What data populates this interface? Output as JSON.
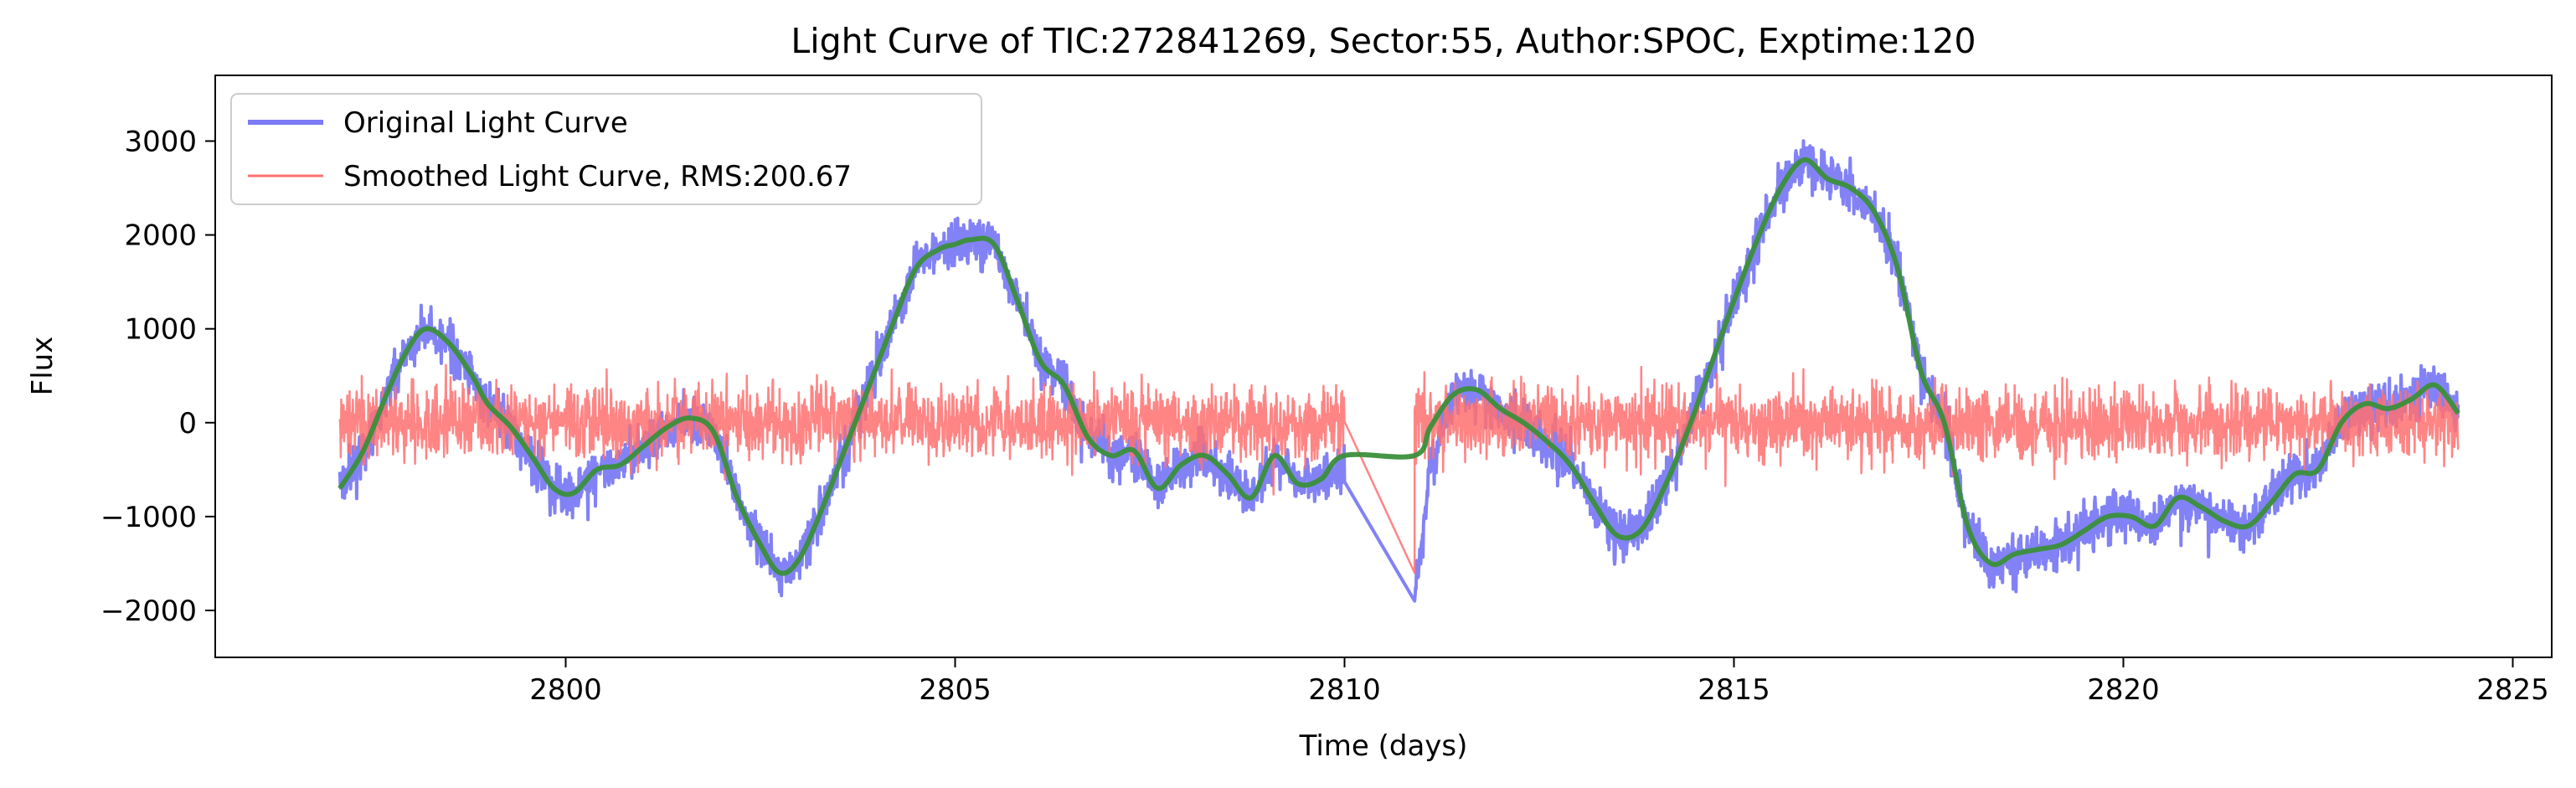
{
  "chart_data": {
    "type": "line",
    "title": "Light Curve of TIC:272841269, Sector:55, Author:SPOC, Exptime:120",
    "xlabel": "Time (days)",
    "ylabel": "Flux",
    "xlim": [
      2795.5,
      2825.5
    ],
    "ylim": [
      -2500,
      3700
    ],
    "xticks": [
      2800,
      2805,
      2810,
      2815,
      2820,
      2825
    ],
    "yticks": [
      -2000,
      -1000,
      0,
      1000,
      2000,
      3000
    ],
    "grid": false,
    "legend_position": "upper-left",
    "gap": [
      2810.0,
      2810.9
    ],
    "colors": {
      "original": "#7b7bf5",
      "smoothed": "#ff7070",
      "trend": "#3a8f3a"
    },
    "series": [
      {
        "name": "Original Light Curve",
        "role": "original",
        "amplitude": 230,
        "x": [
          2797.1,
          2797.4,
          2797.7,
          2797.95,
          2798.2,
          2798.5,
          2798.8,
          2799.0,
          2799.3,
          2799.6,
          2799.85,
          2800.1,
          2800.4,
          2800.7,
          2801.0,
          2801.3,
          2801.6,
          2801.9,
          2802.2,
          2802.5,
          2802.75,
          2803.0,
          2803.3,
          2803.6,
          2803.9,
          2804.2,
          2804.5,
          2804.8,
          2805.0,
          2805.2,
          2805.5,
          2805.8,
          2806.1,
          2806.4,
          2806.7,
          2807.0,
          2807.3,
          2807.6,
          2807.9,
          2808.2,
          2808.5,
          2808.8,
          2809.1,
          2809.4,
          2809.7,
          2810.0,
          2810.9,
          2811.1,
          2811.4,
          2811.7,
          2812.0,
          2812.3,
          2812.6,
          2812.9,
          2813.2,
          2813.5,
          2813.8,
          2814.1,
          2814.4,
          2814.7,
          2815.0,
          2815.3,
          2815.6,
          2815.9,
          2816.2,
          2816.5,
          2816.8,
          2817.1,
          2817.4,
          2817.7,
          2818.0,
          2818.3,
          2818.6,
          2818.9,
          2819.2,
          2819.5,
          2819.8,
          2820.1,
          2820.4,
          2820.7,
          2821.0,
          2821.3,
          2821.6,
          2821.9,
          2822.2,
          2822.5,
          2822.8,
          2823.1,
          2823.4,
          2823.7,
          2824.0,
          2824.3
        ],
        "values": [
          -700,
          -300,
          300,
          750,
          1000,
          850,
          500,
          200,
          -50,
          -400,
          -700,
          -750,
          -500,
          -450,
          -250,
          -50,
          50,
          -100,
          -800,
          -1300,
          -1600,
          -1450,
          -900,
          -250,
          400,
          1050,
          1650,
          1850,
          1900,
          1950,
          1900,
          1300,
          650,
          400,
          -150,
          -350,
          -300,
          -700,
          -450,
          -350,
          -550,
          -800,
          -350,
          -650,
          -600,
          -500,
          -1900,
          -500,
          300,
          350,
          150,
          0,
          -200,
          -450,
          -850,
          -1200,
          -1150,
          -700,
          -100,
          600,
          1300,
          1950,
          2500,
          2800,
          2600,
          2500,
          2250,
          1650,
          550,
          0,
          -1100,
          -1500,
          -1400,
          -1350,
          -1300,
          -1150,
          -1000,
          -1000,
          -1100,
          -800,
          -900,
          -1050,
          -1100,
          -850,
          -550,
          -500,
          0,
          200,
          150,
          250,
          400,
          100
        ]
      },
      {
        "name": "Smoothed Light Curve, RMS:200.67",
        "role": "residual",
        "x": [
          2797.1,
          2810.0,
          2810.9,
          2824.3
        ],
        "values": [
          0,
          0,
          -1600,
          0
        ],
        "noise_amplitude": 200.67
      },
      {
        "role": "trend",
        "x": [
          2797.1,
          2797.4,
          2797.7,
          2797.95,
          2798.2,
          2798.5,
          2798.8,
          2799.0,
          2799.3,
          2799.6,
          2799.85,
          2800.1,
          2800.4,
          2800.7,
          2801.0,
          2801.3,
          2801.6,
          2801.9,
          2802.2,
          2802.5,
          2802.75,
          2803.0,
          2803.3,
          2803.6,
          2803.9,
          2804.2,
          2804.5,
          2804.8,
          2805.0,
          2805.2,
          2805.5,
          2805.8,
          2806.1,
          2806.4,
          2806.7,
          2807.0,
          2807.3,
          2807.6,
          2807.9,
          2808.2,
          2808.5,
          2808.8,
          2809.1,
          2809.4,
          2809.7,
          2810.0,
          2810.9,
          2811.1,
          2811.4,
          2811.7,
          2812.0,
          2812.3,
          2812.6,
          2812.9,
          2813.2,
          2813.5,
          2813.8,
          2814.1,
          2814.4,
          2814.7,
          2815.0,
          2815.3,
          2815.6,
          2815.9,
          2816.2,
          2816.5,
          2816.8,
          2817.1,
          2817.4,
          2817.7,
          2818.0,
          2818.3,
          2818.6,
          2818.9,
          2819.2,
          2819.5,
          2819.8,
          2820.1,
          2820.4,
          2820.7,
          2821.0,
          2821.3,
          2821.6,
          2821.9,
          2822.2,
          2822.5,
          2822.8,
          2823.1,
          2823.4,
          2823.7,
          2824.0,
          2824.3
        ],
        "values": [
          -700,
          -300,
          300,
          750,
          1000,
          850,
          500,
          200,
          -50,
          -400,
          -700,
          -750,
          -500,
          -450,
          -250,
          -50,
          50,
          -100,
          -800,
          -1300,
          -1600,
          -1450,
          -900,
          -250,
          400,
          1050,
          1650,
          1850,
          1900,
          1950,
          1900,
          1300,
          650,
          400,
          -150,
          -350,
          -300,
          -700,
          -450,
          -350,
          -550,
          -800,
          -350,
          -650,
          -600,
          -350,
          -350,
          -50,
          300,
          350,
          150,
          0,
          -200,
          -450,
          -850,
          -1200,
          -1150,
          -700,
          -100,
          600,
          1300,
          1950,
          2500,
          2800,
          2600,
          2500,
          2250,
          1650,
          550,
          0,
          -1100,
          -1500,
          -1400,
          -1350,
          -1300,
          -1150,
          -1000,
          -1000,
          -1100,
          -800,
          -900,
          -1050,
          -1100,
          -850,
          -550,
          -500,
          0,
          200,
          150,
          250,
          400,
          100
        ]
      }
    ]
  }
}
